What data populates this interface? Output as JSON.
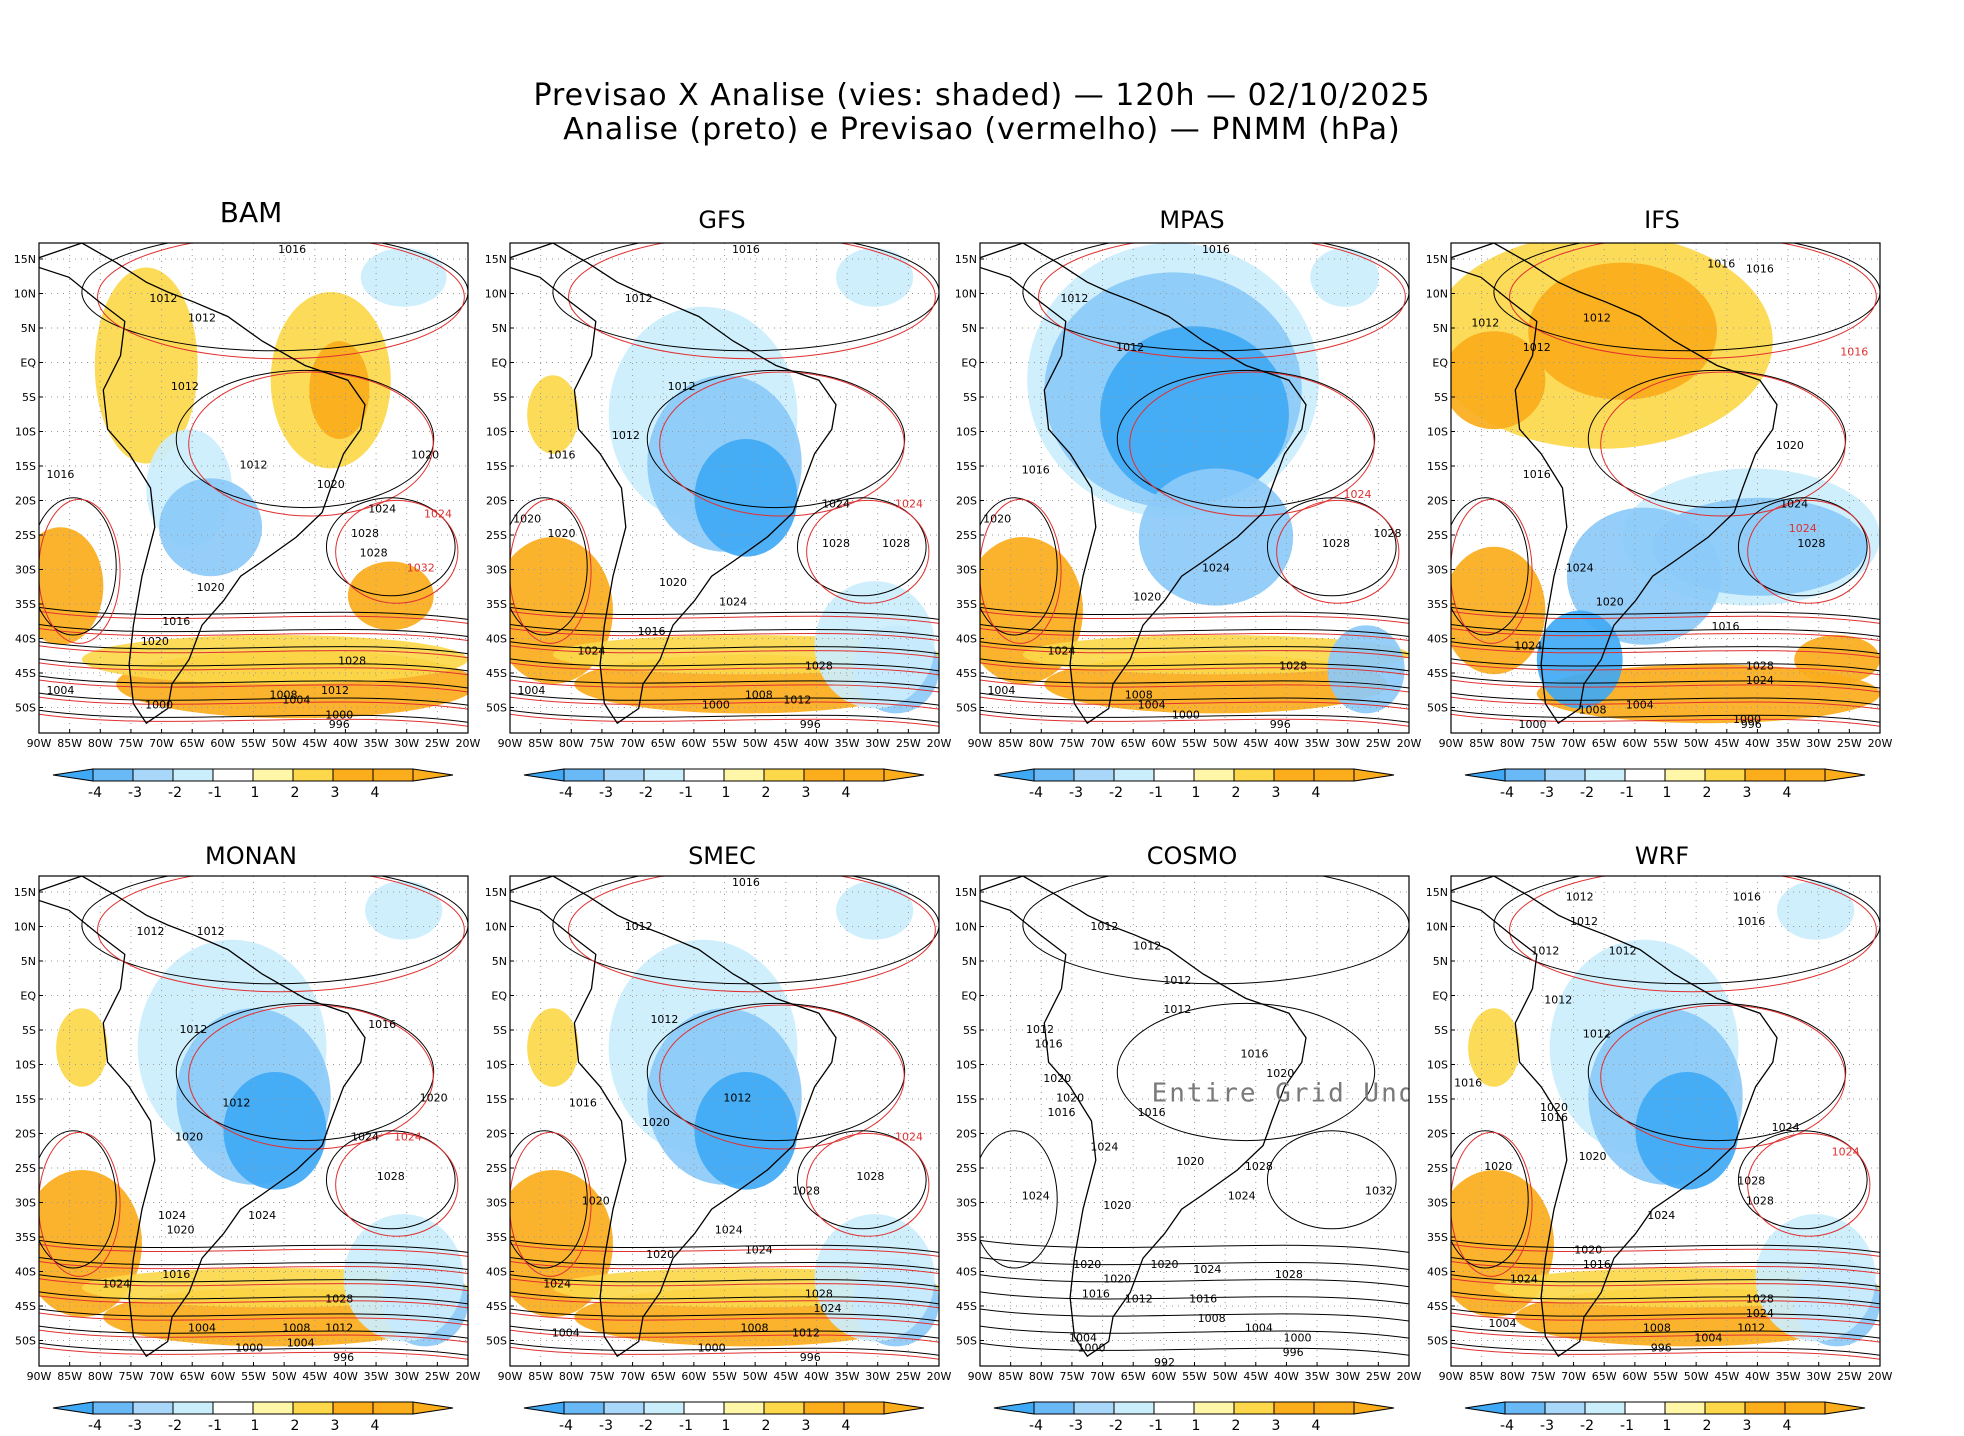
{
  "page": {
    "title_line1": "Previsao X Analise (vies: shaded) — 120h — 02/10/2025",
    "title_line2": "Analise (preto) e Previsao (vermelho) — PNMM (hPa)"
  },
  "colors": {
    "blue_dark": "#3fa9f5",
    "blue_mid": "#8ccaf8",
    "blue_light": "#cbeefd",
    "white": "#ffffff",
    "yellow_light": "#fff6a8",
    "yellow": "#fcd84a",
    "orange": "#fbad1b",
    "analysis_line": "#000000",
    "forecast_line": "#e03030",
    "grid": "#9a9a9a"
  },
  "axes": {
    "lon_labels": [
      "90W",
      "85W",
      "80W",
      "75W",
      "70W",
      "65W",
      "60W",
      "55W",
      "50W",
      "45W",
      "40W",
      "35W",
      "30W",
      "25W",
      "20W"
    ],
    "lat_labels": [
      "15N",
      "10N",
      "5N",
      "EQ",
      "5S",
      "10S",
      "15S",
      "20S",
      "25S",
      "30S",
      "35S",
      "40S",
      "45S",
      "50S"
    ]
  },
  "colorbar": {
    "labels": [
      "-4",
      "-3",
      "-2",
      "-1",
      "1",
      "2",
      "3",
      "4"
    ],
    "colors": [
      "#3fa9f5",
      "#6ab9f7",
      "#a9d7f9",
      "#cbeefd",
      "#ffffff",
      "#fff6a8",
      "#fcd84a",
      "#fbad1b",
      "#fbad1b"
    ]
  },
  "panels": [
    {
      "name": "BAM",
      "bias": "warm",
      "labels": [
        [
          "1016",
          0.59,
          0.02
        ],
        [
          "1012",
          0.29,
          0.12
        ],
        [
          "1012",
          0.38,
          0.16
        ],
        [
          "1012",
          0.34,
          0.3
        ],
        [
          "1012",
          0.5,
          0.46
        ],
        [
          "1016",
          0.05,
          0.48
        ],
        [
          "1020",
          0.9,
          0.44
        ],
        [
          "1020",
          0.68,
          0.5
        ],
        [
          "1024",
          0.8,
          0.55
        ],
        [
          "1024",
          0.93,
          0.56
        ],
        [
          "1028",
          0.76,
          0.6
        ],
        [
          "1028",
          0.78,
          0.64
        ],
        [
          "1032",
          0.89,
          0.67
        ],
        [
          "1020",
          0.4,
          0.71
        ],
        [
          "1016",
          0.32,
          0.78
        ],
        [
          "1020",
          0.27,
          0.82
        ],
        [
          "1028",
          0.73,
          0.86
        ],
        [
          "1008",
          0.57,
          0.93
        ],
        [
          "1004",
          0.6,
          0.94
        ],
        [
          "1012",
          0.69,
          0.92
        ],
        [
          "1000",
          0.7,
          0.97
        ],
        [
          "996",
          0.7,
          0.99
        ],
        [
          "1004",
          0.05,
          0.92
        ],
        [
          "1000",
          0.28,
          0.95
        ]
      ]
    },
    {
      "name": "GFS",
      "bias": "cool",
      "labels": [
        [
          "1016",
          0.55,
          0.02
        ],
        [
          "1012",
          0.3,
          0.12
        ],
        [
          "1012",
          0.4,
          0.3
        ],
        [
          "1012",
          0.27,
          0.4
        ],
        [
          "1016",
          0.12,
          0.44
        ],
        [
          "1020",
          0.04,
          0.57
        ],
        [
          "1020",
          0.12,
          0.6
        ],
        [
          "1024",
          0.76,
          0.54
        ],
        [
          "1024",
          0.93,
          0.54
        ],
        [
          "1028",
          0.76,
          0.62
        ],
        [
          "1028",
          0.9,
          0.62
        ],
        [
          "1020",
          0.38,
          0.7
        ],
        [
          "1024",
          0.52,
          0.74
        ],
        [
          "1024",
          0.19,
          0.84
        ],
        [
          "1016",
          0.33,
          0.8
        ],
        [
          "1028",
          0.72,
          0.87
        ],
        [
          "1008",
          0.58,
          0.93
        ],
        [
          "1012",
          0.67,
          0.94
        ],
        [
          "1000",
          0.48,
          0.95
        ],
        [
          "996",
          0.7,
          0.99
        ],
        [
          "1004",
          0.05,
          0.92
        ]
      ]
    },
    {
      "name": "MPAS",
      "bias": "coolstrong",
      "labels": [
        [
          "1016",
          0.55,
          0.02
        ],
        [
          "1012",
          0.22,
          0.12
        ],
        [
          "1012",
          0.35,
          0.22
        ],
        [
          "1016",
          0.13,
          0.47
        ],
        [
          "1020",
          0.04,
          0.57
        ],
        [
          "1024",
          0.88,
          0.52
        ],
        [
          "1028",
          0.95,
          0.6
        ],
        [
          "1028",
          0.83,
          0.62
        ],
        [
          "1024",
          0.55,
          0.67
        ],
        [
          "1020",
          0.39,
          0.73
        ],
        [
          "1024",
          0.19,
          0.84
        ],
        [
          "1028",
          0.73,
          0.87
        ],
        [
          "1008",
          0.37,
          0.93
        ],
        [
          "1004",
          0.4,
          0.95
        ],
        [
          "1000",
          0.48,
          0.97
        ],
        [
          "996",
          0.7,
          0.99
        ],
        [
          "1004",
          0.05,
          0.92
        ]
      ]
    },
    {
      "name": "IFS",
      "bias": "mixed",
      "labels": [
        [
          "1016",
          0.63,
          0.05
        ],
        [
          "1016",
          0.72,
          0.06
        ],
        [
          "1012",
          0.08,
          0.17
        ],
        [
          "1012",
          0.2,
          0.22
        ],
        [
          "1012",
          0.34,
          0.16
        ],
        [
          "1016",
          0.94,
          0.23
        ],
        [
          "1020",
          0.79,
          0.42
        ],
        [
          "1016",
          0.2,
          0.48
        ],
        [
          "1024",
          0.8,
          0.54
        ],
        [
          "1024",
          0.82,
          0.59
        ],
        [
          "1028",
          0.84,
          0.62
        ],
        [
          "1024",
          0.3,
          0.67
        ],
        [
          "1020",
          0.37,
          0.74
        ],
        [
          "1024",
          0.18,
          0.83
        ],
        [
          "1016",
          0.64,
          0.79
        ],
        [
          "1028",
          0.72,
          0.87
        ],
        [
          "1024",
          0.72,
          0.9
        ],
        [
          "1008",
          0.33,
          0.96
        ],
        [
          "1004",
          0.44,
          0.95
        ],
        [
          "1000",
          0.69,
          0.98
        ],
        [
          "996",
          0.7,
          0.99
        ],
        [
          "1000",
          0.19,
          0.99
        ]
      ]
    },
    {
      "name": "MONAN",
      "bias": "cool",
      "labels": [
        [
          "1012",
          0.26,
          0.12
        ],
        [
          "1012",
          0.4,
          0.12
        ],
        [
          "1012",
          0.36,
          0.32
        ],
        [
          "1016",
          0.8,
          0.31
        ],
        [
          "1012",
          0.46,
          0.47
        ],
        [
          "1020",
          0.92,
          0.46
        ],
        [
          "1024",
          0.76,
          0.54
        ],
        [
          "1024",
          0.86,
          0.54
        ],
        [
          "1020",
          0.35,
          0.54
        ],
        [
          "1028",
          0.82,
          0.62
        ],
        [
          "1024",
          0.52,
          0.7
        ],
        [
          "1024",
          0.31,
          0.7
        ],
        [
          "1020",
          0.33,
          0.73
        ],
        [
          "1016",
          0.32,
          0.82
        ],
        [
          "1024",
          0.18,
          0.84
        ],
        [
          "1028",
          0.7,
          0.87
        ],
        [
          "1004",
          0.38,
          0.93
        ],
        [
          "1000",
          0.49,
          0.97
        ],
        [
          "1008",
          0.6,
          0.93
        ],
        [
          "1012",
          0.7,
          0.93
        ],
        [
          "1004",
          0.61,
          0.96
        ],
        [
          "996",
          0.71,
          0.99
        ]
      ]
    },
    {
      "name": "SMEC",
      "bias": "cool",
      "labels": [
        [
          "1016",
          0.55,
          0.02
        ],
        [
          "1012",
          0.3,
          0.11
        ],
        [
          "1012",
          0.36,
          0.3
        ],
        [
          "1012",
          0.53,
          0.46
        ],
        [
          "1016",
          0.17,
          0.47
        ],
        [
          "1020",
          0.34,
          0.51
        ],
        [
          "1024",
          0.93,
          0.54
        ],
        [
          "1028",
          0.84,
          0.62
        ],
        [
          "1028",
          0.69,
          0.65
        ],
        [
          "1020",
          0.2,
          0.67
        ],
        [
          "1024",
          0.51,
          0.73
        ],
        [
          "1024",
          0.58,
          0.77
        ],
        [
          "1020",
          0.35,
          0.78
        ],
        [
          "1024",
          0.11,
          0.84
        ],
        [
          "1028",
          0.72,
          0.86
        ],
        [
          "1024",
          0.74,
          0.89
        ],
        [
          "1004",
          0.13,
          0.94
        ],
        [
          "1008",
          0.57,
          0.93
        ],
        [
          "1012",
          0.69,
          0.94
        ],
        [
          "1000",
          0.47,
          0.97
        ],
        [
          "996",
          0.7,
          0.99
        ]
      ]
    },
    {
      "name": "COSMO",
      "bias": "none",
      "undef": "Entire Grid Undef",
      "labels": [
        [
          "1012",
          0.29,
          0.11
        ],
        [
          "1012",
          0.39,
          0.15
        ],
        [
          "1012",
          0.46,
          0.22
        ],
        [
          "1012",
          0.46,
          0.28
        ],
        [
          "1012",
          0.14,
          0.32
        ],
        [
          "1016",
          0.16,
          0.35
        ],
        [
          "1020",
          0.18,
          0.42
        ],
        [
          "1020",
          0.21,
          0.46
        ],
        [
          "1016",
          0.19,
          0.49
        ],
        [
          "1016",
          0.4,
          0.49
        ],
        [
          "1016",
          0.64,
          0.37
        ],
        [
          "1020",
          0.7,
          0.41
        ],
        [
          "1024",
          0.29,
          0.56
        ],
        [
          "1020",
          0.32,
          0.68
        ],
        [
          "1020",
          0.49,
          0.59
        ],
        [
          "1024",
          0.61,
          0.66
        ],
        [
          "1028",
          0.65,
          0.6
        ],
        [
          "1032",
          0.93,
          0.65
        ],
        [
          "1024",
          0.13,
          0.66
        ],
        [
          "1020",
          0.25,
          0.8
        ],
        [
          "1020",
          0.32,
          0.83
        ],
        [
          "1016",
          0.27,
          0.86
        ],
        [
          "1012",
          0.37,
          0.87
        ],
        [
          "1020",
          0.43,
          0.8
        ],
        [
          "1024",
          0.53,
          0.81
        ],
        [
          "1028",
          0.72,
          0.82
        ],
        [
          "1016",
          0.52,
          0.87
        ],
        [
          "1008",
          0.54,
          0.91
        ],
        [
          "1004",
          0.65,
          0.93
        ],
        [
          "1000",
          0.74,
          0.95
        ],
        [
          "996",
          0.73,
          0.98
        ],
        [
          "1004",
          0.24,
          0.95
        ],
        [
          "1000",
          0.26,
          0.97
        ],
        [
          "992",
          0.43,
          1.0
        ]
      ]
    },
    {
      "name": "WRF",
      "bias": "cool",
      "labels": [
        [
          "1012",
          0.3,
          0.05
        ],
        [
          "1016",
          0.69,
          0.05
        ],
        [
          "1016",
          0.7,
          0.1
        ],
        [
          "1012",
          0.31,
          0.1
        ],
        [
          "1012",
          0.22,
          0.16
        ],
        [
          "1012",
          0.4,
          0.16
        ],
        [
          "1012",
          0.25,
          0.26
        ],
        [
          "1016",
          0.04,
          0.43
        ],
        [
          "1012",
          0.34,
          0.33
        ],
        [
          "1020",
          0.24,
          0.48
        ],
        [
          "1016",
          0.24,
          0.5
        ],
        [
          "1020",
          0.11,
          0.6
        ],
        [
          "1024",
          0.78,
          0.52
        ],
        [
          "1024",
          0.92,
          0.57
        ],
        [
          "1020",
          0.33,
          0.58
        ],
        [
          "1028",
          0.7,
          0.63
        ],
        [
          "1028",
          0.72,
          0.67
        ],
        [
          "1024",
          0.49,
          0.7
        ],
        [
          "1020",
          0.32,
          0.77
        ],
        [
          "1016",
          0.34,
          0.8
        ],
        [
          "1024",
          0.17,
          0.83
        ],
        [
          "1028",
          0.72,
          0.87
        ],
        [
          "1024",
          0.72,
          0.9
        ],
        [
          "1004",
          0.12,
          0.92
        ],
        [
          "1008",
          0.48,
          0.93
        ],
        [
          "1012",
          0.7,
          0.93
        ],
        [
          "1004",
          0.6,
          0.95
        ],
        [
          "996",
          0.49,
          0.97
        ]
      ]
    }
  ]
}
